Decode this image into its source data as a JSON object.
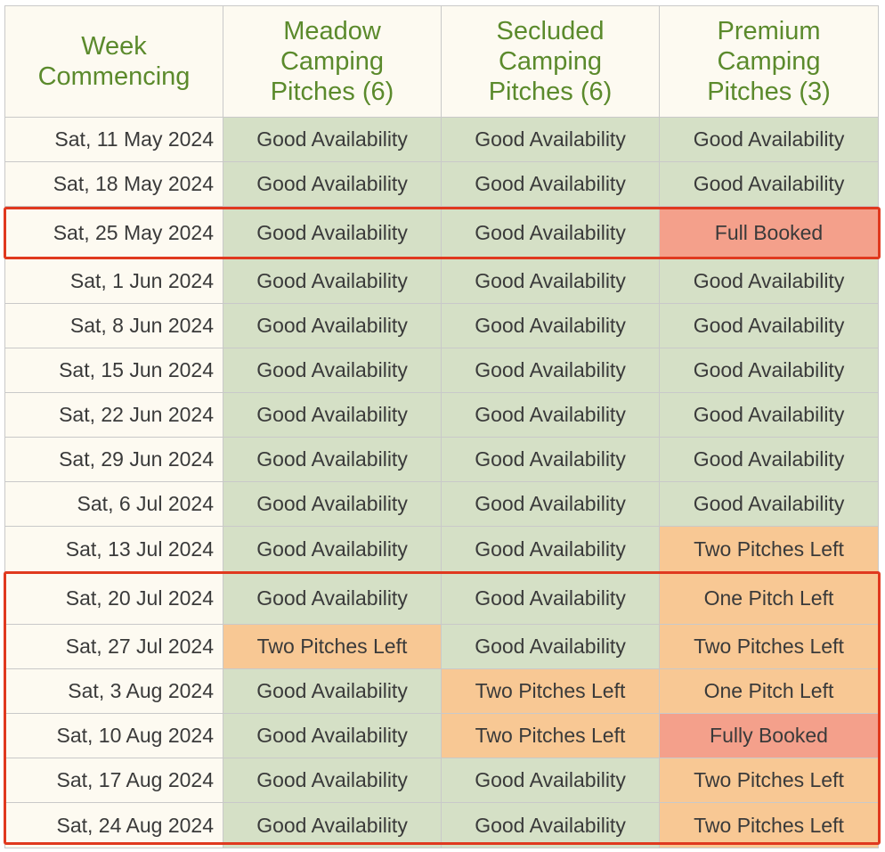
{
  "table": {
    "headers": [
      {
        "lines": [
          "Week",
          "Commencing"
        ]
      },
      {
        "lines": [
          "Meadow",
          "Camping",
          "Pitches (6)"
        ]
      },
      {
        "lines": [
          "Secluded",
          "Camping",
          "Pitches (6)"
        ]
      },
      {
        "lines": [
          "Premium",
          "Camping",
          "Pitches (3)"
        ]
      }
    ],
    "rows": [
      {
        "week": "Sat, 11 May 2024",
        "meadow": "Good Availability",
        "secluded": "Good Availability",
        "premium": "Good Availability"
      },
      {
        "week": "Sat, 18 May 2024",
        "meadow": "Good Availability",
        "secluded": "Good Availability",
        "premium": "Good Availability"
      },
      {
        "week": "Sat, 25 May 2024",
        "meadow": "Good Availability",
        "secluded": "Good Availability",
        "premium": "Full Booked"
      },
      {
        "week": "Sat, 1 Jun 2024",
        "meadow": "Good Availability",
        "secluded": "Good Availability",
        "premium": "Good Availability"
      },
      {
        "week": "Sat, 8 Jun 2024",
        "meadow": "Good Availability",
        "secluded": "Good Availability",
        "premium": "Good Availability"
      },
      {
        "week": "Sat, 15 Jun 2024",
        "meadow": "Good Availability",
        "secluded": "Good Availability",
        "premium": "Good Availability"
      },
      {
        "week": "Sat, 22 Jun 2024",
        "meadow": "Good Availability",
        "secluded": "Good Availability",
        "premium": "Good Availability"
      },
      {
        "week": "Sat, 29 Jun 2024",
        "meadow": "Good Availability",
        "secluded": "Good Availability",
        "premium": "Good Availability"
      },
      {
        "week": "Sat, 6 Jul 2024",
        "meadow": "Good Availability",
        "secluded": "Good Availability",
        "premium": "Good Availability"
      },
      {
        "week": "Sat, 13 Jul 2024",
        "meadow": "Good Availability",
        "secluded": "Good Availability",
        "premium": "Two Pitches Left"
      },
      {
        "week": "Sat, 20 Jul 2024",
        "meadow": "Good Availability",
        "secluded": "Good Availability",
        "premium": "One Pitch Left"
      },
      {
        "week": "Sat, 27 Jul 2024",
        "meadow": "Two Pitches Left",
        "secluded": "Good Availability",
        "premium": "Two Pitches Left"
      },
      {
        "week": "Sat, 3 Aug 2024",
        "meadow": "Good Availability",
        "secluded": "Two Pitches Left",
        "premium": "One Pitch Left"
      },
      {
        "week": "Sat, 10 Aug 2024",
        "meadow": "Good Availability",
        "secluded": "Two Pitches Left",
        "premium": "Fully Booked"
      },
      {
        "week": "Sat, 17 Aug 2024",
        "meadow": "Good Availability",
        "secluded": "Good Availability",
        "premium": "Two Pitches Left"
      },
      {
        "week": "Sat, 24 Aug 2024",
        "meadow": "Good Availability",
        "secluded": "Good Availability",
        "premium": "Two Pitches Left"
      }
    ]
  },
  "status_colors": {
    "good": "#d5e0c6",
    "limited": "#f8c894",
    "full": "#f4a08b"
  },
  "accent_colors": {
    "header_text": "#5b8a2c",
    "highlight_outline": "#e0391f"
  }
}
